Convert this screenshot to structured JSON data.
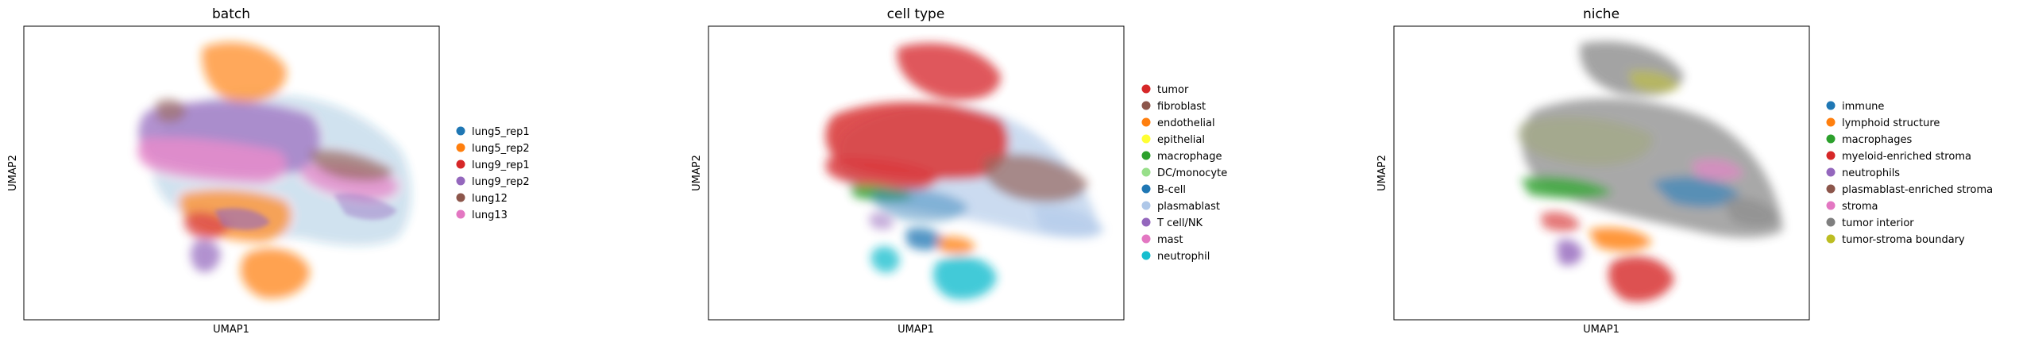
{
  "chart_data": [
    {
      "type": "scatter",
      "title": "batch",
      "xlabel": "UMAP1",
      "ylabel": "UMAP2",
      "grid": false,
      "legend_position": "right",
      "legend": [
        {
          "label": "lung5_rep1",
          "color": "#1f77b4"
        },
        {
          "label": "lung5_rep2",
          "color": "#ff7f0e"
        },
        {
          "label": "lung9_rep1",
          "color": "#d62728"
        },
        {
          "label": "lung9_rep2",
          "color": "#9467bd"
        },
        {
          "label": "lung12",
          "color": "#8c564b"
        },
        {
          "label": "lung13",
          "color": "#e377c2"
        }
      ]
    },
    {
      "type": "scatter",
      "title": "cell type",
      "xlabel": "UMAP1",
      "ylabel": "UMAP2",
      "grid": false,
      "legend_position": "right",
      "legend": [
        {
          "label": "tumor",
          "color": "#d62728"
        },
        {
          "label": "fibroblast",
          "color": "#8c564b"
        },
        {
          "label": "endothelial",
          "color": "#ff7f0e"
        },
        {
          "label": "epithelial",
          "color": "#ffff33"
        },
        {
          "label": "macrophage",
          "color": "#2ca02c"
        },
        {
          "label": "DC/monocyte",
          "color": "#98df8a"
        },
        {
          "label": "B-cell",
          "color": "#1f77b4"
        },
        {
          "label": "plasmablast",
          "color": "#aec7e8"
        },
        {
          "label": "T cell/NK",
          "color": "#9467bd"
        },
        {
          "label": "mast",
          "color": "#e377c2"
        },
        {
          "label": "neutrophil",
          "color": "#17becf"
        }
      ]
    },
    {
      "type": "scatter",
      "title": "niche",
      "xlabel": "UMAP1",
      "ylabel": "UMAP2",
      "grid": false,
      "legend_position": "right",
      "legend": [
        {
          "label": "immune",
          "color": "#1f77b4"
        },
        {
          "label": "lymphoid structure",
          "color": "#ff7f0e"
        },
        {
          "label": "macrophages",
          "color": "#2ca02c"
        },
        {
          "label": "myeloid-enriched stroma",
          "color": "#d62728"
        },
        {
          "label": "neutrophils",
          "color": "#9467bd"
        },
        {
          "label": "plasmablast-enriched stroma",
          "color": "#8c564b"
        },
        {
          "label": "stroma",
          "color": "#e377c2"
        },
        {
          "label": "tumor interior",
          "color": "#7f7f7f"
        },
        {
          "label": "tumor-stroma boundary",
          "color": "#bcbd22"
        }
      ]
    }
  ]
}
